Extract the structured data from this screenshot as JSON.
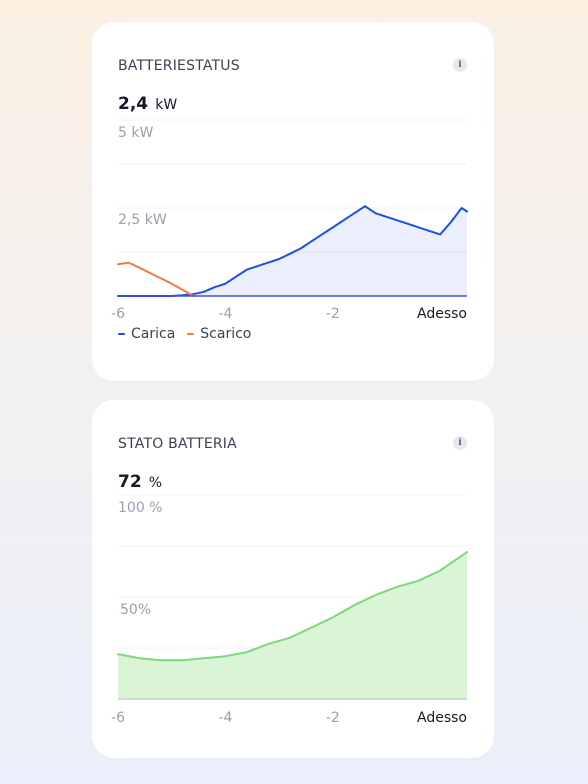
{
  "battery_power": {
    "title": "BATTERIESTATUS",
    "info_icon": "info-icon",
    "value": "2,4",
    "unit": "kW",
    "y_label_top": "5 kW",
    "y_label_mid": "2,5 kW",
    "legend": {
      "charge": "Carica",
      "discharge": "Scarico"
    },
    "colors": {
      "charge": "#1f4fe0",
      "discharge": "#f07d3f"
    }
  },
  "battery_state": {
    "title": "STATO BATTERIA",
    "info_icon": "info-icon",
    "value": "72",
    "unit": "%",
    "y_label_top": "100 %",
    "y_label_mid": "50%",
    "colors": {
      "line": "#7ed87a",
      "fill": "#d9f5d6"
    }
  },
  "chart_data": [
    {
      "type": "area",
      "x_ticks": [
        "-6",
        "-4",
        "-2",
        "Adesso"
      ],
      "xlim": [
        -6,
        0.5
      ],
      "ylim": [
        0,
        5
      ],
      "unit": "kW",
      "series": [
        {
          "name": "Carica",
          "x": [
            -6,
            -5.0,
            -4.8,
            -4.6,
            -4.4,
            -4.2,
            -4.0,
            -3.8,
            -3.6,
            -3.4,
            -3.2,
            -3.0,
            -2.8,
            -2.6,
            -2.4,
            -2.2,
            -2.0,
            -1.8,
            -1.6,
            -1.4,
            -1.2,
            -1.0,
            -0.8,
            -0.6,
            -0.4,
            -0.2,
            0.0,
            0.2,
            0.3,
            0.4,
            0.5
          ],
          "y": [
            0,
            0,
            0.02,
            0.05,
            0.12,
            0.25,
            0.35,
            0.55,
            0.75,
            0.85,
            0.95,
            1.05,
            1.2,
            1.35,
            1.55,
            1.75,
            1.95,
            2.15,
            2.35,
            2.55,
            2.35,
            2.25,
            2.15,
            2.05,
            1.95,
            1.85,
            1.75,
            2.1,
            2.3,
            2.5,
            2.4
          ]
        },
        {
          "name": "Scarico",
          "x": [
            -6,
            -5.8,
            -5.6,
            -5.4,
            -5.2,
            -5.0,
            -4.8,
            -4.6
          ],
          "y": [
            0.9,
            0.95,
            0.8,
            0.65,
            0.5,
            0.35,
            0.18,
            0.0
          ]
        }
      ]
    },
    {
      "type": "area",
      "x_ticks": [
        "-6",
        "-4",
        "-2",
        "Adesso"
      ],
      "xlim": [
        -6,
        0.5
      ],
      "ylim": [
        0,
        100
      ],
      "unit": "%",
      "series": [
        {
          "name": "",
          "x": [
            -6,
            -5.6,
            -5.2,
            -4.8,
            -4.4,
            -4.0,
            -3.6,
            -3.2,
            -2.8,
            -2.4,
            -2.0,
            -1.6,
            -1.2,
            -0.8,
            -0.4,
            0.0,
            0.5
          ],
          "y": [
            22,
            20,
            19,
            19,
            20,
            21,
            23,
            27,
            30,
            35,
            40,
            46,
            51,
            55,
            58,
            63,
            72
          ]
        }
      ]
    }
  ]
}
